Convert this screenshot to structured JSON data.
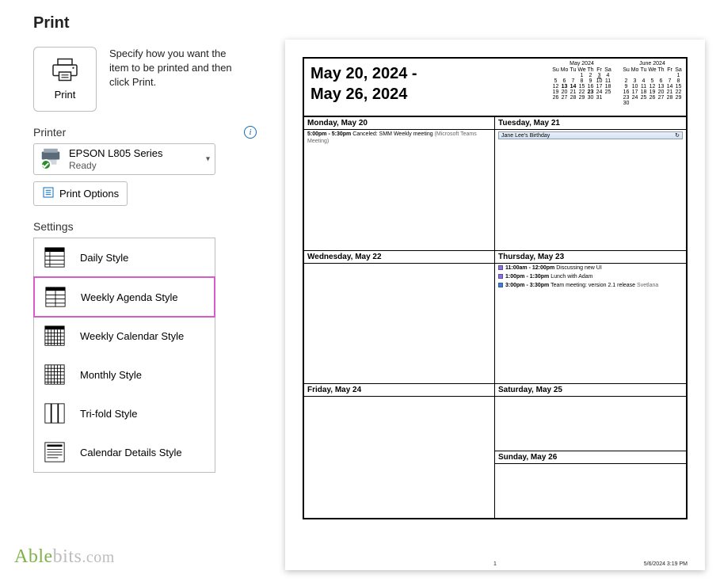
{
  "title": "Print",
  "description": "Specify how you want the item to be printed and then click Print.",
  "print_btn_label": "Print",
  "printer_section_label": "Printer",
  "printer": {
    "name": "EPSON L805 Series",
    "status": "Ready"
  },
  "print_options_label": "Print Options",
  "settings_label": "Settings",
  "styles": [
    {
      "id": "daily",
      "label": "Daily Style",
      "selected": false
    },
    {
      "id": "weekly-agenda",
      "label": "Weekly Agenda Style",
      "selected": true
    },
    {
      "id": "weekly-calendar",
      "label": "Weekly Calendar Style",
      "selected": false
    },
    {
      "id": "monthly",
      "label": "Monthly Style",
      "selected": false
    },
    {
      "id": "trifold",
      "label": "Tri-fold Style",
      "selected": false
    },
    {
      "id": "details",
      "label": "Calendar Details Style",
      "selected": false
    }
  ],
  "watermark": {
    "part1": "Able",
    "part2": "bits",
    "part3": ".com"
  },
  "preview": {
    "range_line1": "May 20, 2024 -",
    "range_line2": "May 26, 2024",
    "mini_months": [
      {
        "title": "May 2024",
        "headers": [
          "Su",
          "Mo",
          "Tu",
          "We",
          "Th",
          "Fr",
          "Sa"
        ],
        "rows": [
          [
            "",
            "",
            "",
            "1",
            "2",
            "3",
            "4"
          ],
          [
            "5",
            "6",
            "7",
            "8",
            "9",
            "10",
            "11"
          ],
          [
            "12",
            "13",
            "14",
            "15",
            "16",
            "17",
            "18"
          ],
          [
            "19",
            "20",
            "21",
            "22",
            "23",
            "24",
            "25"
          ],
          [
            "26",
            "27",
            "28",
            "29",
            "30",
            "31",
            ""
          ]
        ],
        "bold": [
          "13",
          "14",
          "23"
        ],
        "ul": [
          "3"
        ]
      },
      {
        "title": "June 2024",
        "headers": [
          "Su",
          "Mo",
          "Tu",
          "We",
          "Th",
          "Fr",
          "Sa"
        ],
        "rows": [
          [
            "",
            "",
            "",
            "",
            "",
            "",
            "1"
          ],
          [
            "2",
            "3",
            "4",
            "5",
            "6",
            "7",
            "8"
          ],
          [
            "9",
            "10",
            "11",
            "12",
            "13",
            "14",
            "15"
          ],
          [
            "16",
            "17",
            "18",
            "19",
            "20",
            "21",
            "22"
          ],
          [
            "23",
            "24",
            "25",
            "26",
            "27",
            "28",
            "29"
          ],
          [
            "30",
            "",
            "",
            "",
            "",
            "",
            ""
          ]
        ],
        "bold": [],
        "ul": []
      }
    ],
    "days": {
      "mon": {
        "header": "Monday, May 20",
        "events": [
          {
            "time": "5:00pm - 5:30pm",
            "title": "Canceled: SMM Weekly meeting",
            "sub": "(Microsoft Teams Meeting)"
          }
        ]
      },
      "tue": {
        "header": "Tuesday, May 21",
        "birthday": "Jane Lee's Birthday"
      },
      "wed": {
        "header": "Wednesday, May 22"
      },
      "thu": {
        "header": "Thursday, May 23",
        "events": [
          {
            "time": "11:00am - 12:00pm",
            "title": "Discussing new UI",
            "color": "purple"
          },
          {
            "time": "1:00pm - 1:30pm",
            "title": "Lunch with Adam",
            "color": "purple"
          },
          {
            "time": "3:00pm - 3:30pm",
            "title": "Team meeting: version 2.1 release",
            "sub": "Svetlana",
            "color": "blue"
          }
        ]
      },
      "fri": {
        "header": "Friday, May 24"
      },
      "sat": {
        "header": "Saturday, May 25"
      },
      "sun": {
        "header": "Sunday, May 26"
      }
    },
    "footer": {
      "page": "1",
      "stamp": "5/6/2024 3:19 PM"
    }
  }
}
